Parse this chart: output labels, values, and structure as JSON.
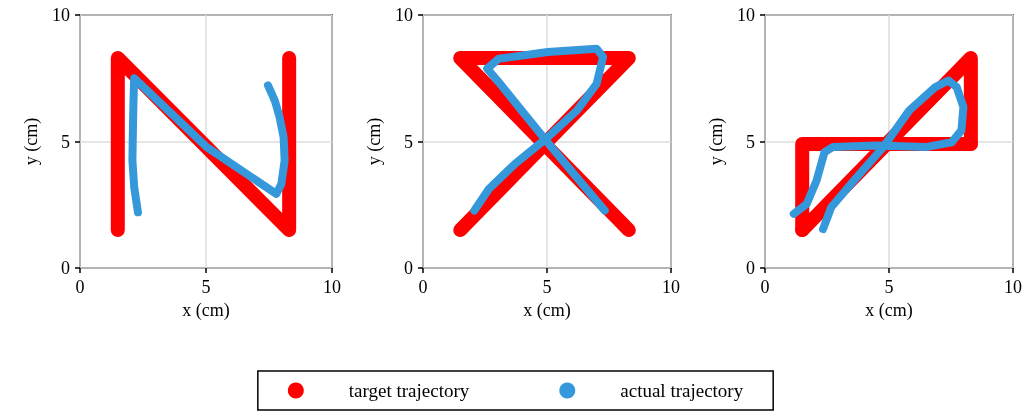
{
  "chart_data": [
    {
      "type": "line",
      "xlabel": "x (cm)",
      "ylabel": "y (cm)",
      "xlim": [
        0,
        10
      ],
      "ylim": [
        0,
        10
      ],
      "xticks": [
        0,
        5,
        10
      ],
      "yticks": [
        0,
        5,
        10
      ],
      "grid": true,
      "legend": "bottom",
      "series": [
        {
          "name": "target trajectory",
          "color": "#ff0000",
          "x": [
            1.5,
            1.5,
            8.3,
            8.3
          ],
          "values": [
            1.5,
            8.3,
            1.5,
            8.3
          ]
        },
        {
          "name": "actual trajectory",
          "color": "#3498db",
          "x": [
            2.3,
            2.15,
            2.08,
            2.1,
            2.12,
            2.15,
            5.03,
            7.79,
            7.99,
            8.12,
            8.08,
            7.92,
            7.73,
            7.46
          ],
          "values": [
            2.2,
            3.2,
            4.25,
            5.5,
            6.5,
            7.5,
            4.78,
            2.93,
            3.32,
            4.25,
            5.17,
            5.96,
            6.62,
            7.22
          ]
        }
      ]
    },
    {
      "type": "line",
      "xlabel": "x (cm)",
      "ylabel": "y (cm)",
      "xlim": [
        0,
        10
      ],
      "ylim": [
        0,
        10
      ],
      "xticks": [
        0,
        5,
        10
      ],
      "yticks": [
        0,
        5,
        10
      ],
      "grid": true,
      "series": [
        {
          "color": "#ff0000",
          "x": [
            1.5,
            8.3,
            1.5,
            8.3
          ],
          "values": [
            1.5,
            8.3,
            8.3,
            1.5
          ]
        },
        {
          "color": "#3498db",
          "x": [
            2.07,
            2.66,
            3.71,
            4.96,
            6.21,
            7.0,
            7.26,
            7.0,
            5.03,
            3.05,
            2.59,
            3.05,
            3.97,
            4.96,
            6.08,
            7.33
          ],
          "values": [
            2.27,
            3.13,
            4.12,
            5.11,
            6.23,
            7.28,
            8.34,
            8.67,
            8.54,
            8.27,
            7.88,
            7.35,
            6.23,
            5.04,
            3.72,
            2.27
          ]
        }
      ]
    },
    {
      "type": "line",
      "xlabel": "x (cm)",
      "ylabel": "y (cm)",
      "xlim": [
        0,
        10
      ],
      "ylim": [
        0,
        10
      ],
      "xticks": [
        0,
        5,
        10
      ],
      "yticks": [
        0,
        5,
        10
      ],
      "grid": true,
      "series": [
        {
          "color": "#ff0000",
          "x": [
            1.5,
            8.3,
            8.3
          ],
          "values": [
            1.5,
            8.3,
            4.9
          ]
        },
        {
          "color": "#ff0000",
          "x": [
            8.3,
            1.5,
            1.5
          ],
          "values": [
            4.9,
            4.9,
            1.5
          ]
        },
        {
          "color": "#3498db",
          "x": [
            1.16,
            1.68,
            2.08,
            2.4,
            2.73,
            4.51,
            6.48,
            7.53,
            7.92,
            8.0,
            7.73,
            7.4,
            6.87,
            5.82,
            4.77,
            3.59,
            2.67,
            2.34
          ],
          "values": [
            2.14,
            2.53,
            3.46,
            4.58,
            4.78,
            4.84,
            4.78,
            4.97,
            5.44,
            6.36,
            7.15,
            7.41,
            7.15,
            6.23,
            4.78,
            3.46,
            2.4,
            1.54
          ]
        }
      ]
    }
  ]
}
